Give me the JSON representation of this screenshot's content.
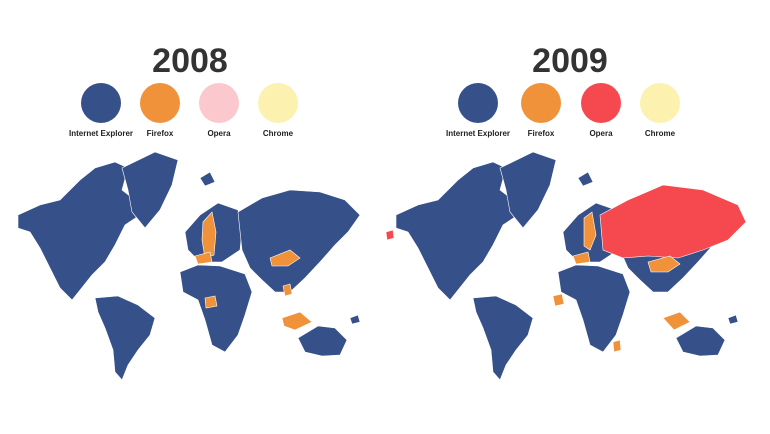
{
  "panels": [
    {
      "title": "2008",
      "legend": [
        {
          "label": "Internet Explorer",
          "color": "#36508a"
        },
        {
          "label": "Firefox",
          "color": "#f0923a"
        },
        {
          "label": "Opera",
          "color": "#fbc9cd"
        },
        {
          "label": "Chrome",
          "color": "#fdf1b0"
        }
      ]
    },
    {
      "title": "2009",
      "legend": [
        {
          "label": "Internet Explorer",
          "color": "#36508a"
        },
        {
          "label": "Firefox",
          "color": "#f0923a"
        },
        {
          "label": "Opera",
          "color": "#f6494f"
        },
        {
          "label": "Chrome",
          "color": "#fdf1b0"
        }
      ]
    }
  ]
}
